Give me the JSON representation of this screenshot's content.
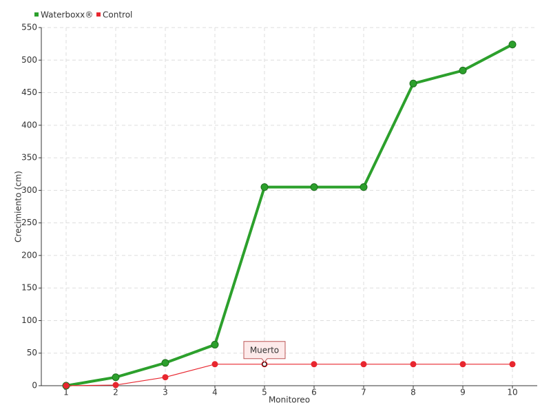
{
  "chart_data": {
    "type": "line",
    "categories": [
      "1",
      "2",
      "3",
      "4",
      "5",
      "6",
      "7",
      "8",
      "9",
      "10"
    ],
    "x_label": "Monitoreo",
    "y_label": "Crecimiento (cm)",
    "series": [
      {
        "name": "Waterboxx®",
        "color": "#2ca02c",
        "values": [
          0,
          13,
          35,
          63,
          305,
          305,
          305,
          464,
          484,
          524
        ]
      },
      {
        "name": "Control",
        "color": "#e8262f",
        "values": [
          0,
          1,
          13,
          33,
          33,
          33,
          33,
          33,
          33,
          33
        ]
      }
    ],
    "ylim": [
      0,
      550
    ],
    "yticks": [
      0,
      50,
      100,
      150,
      200,
      250,
      300,
      350,
      400,
      450,
      500,
      550
    ],
    "grid": true,
    "legend": "top-left",
    "annotations": [
      {
        "text": "Muerto",
        "x": "5",
        "series": "Control"
      }
    ]
  }
}
